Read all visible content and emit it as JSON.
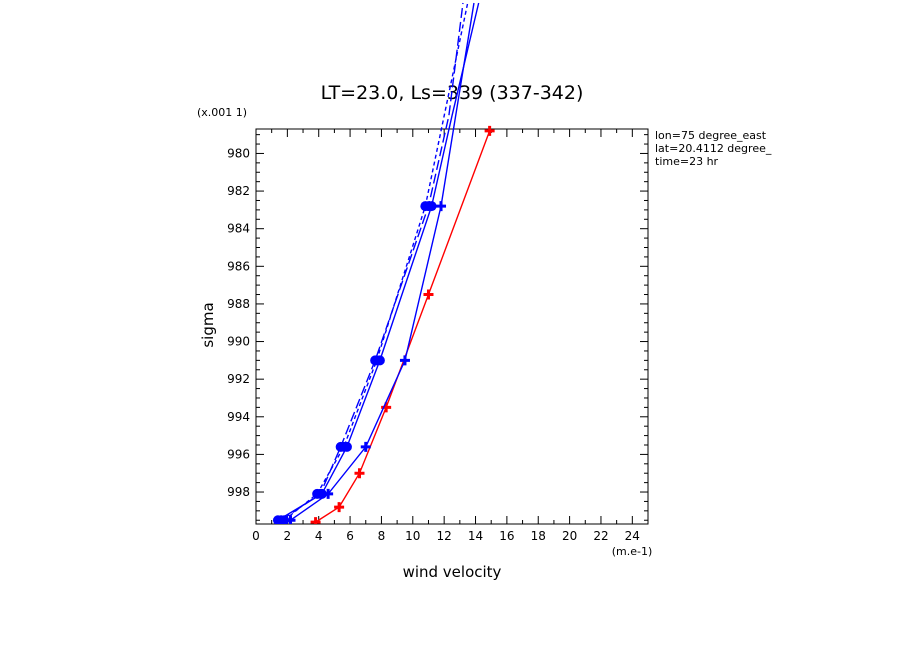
{
  "chart_data": {
    "type": "line",
    "title": "LT=23.0, Ls=339 (337-342)",
    "xlabel": "wind velocity",
    "x_unit": "(m.e-1)",
    "ylabel": "sigma",
    "y_unit": "(x.001 1)",
    "xlim": [
      0,
      25
    ],
    "ylim": [
      978.7,
      999.7
    ],
    "y_inverted": true,
    "x_ticks": [
      0,
      2,
      4,
      6,
      8,
      10,
      12,
      14,
      16,
      18,
      20,
      22,
      24
    ],
    "x_tick_labels": [
      "0",
      "2",
      "4",
      "6",
      "8",
      "10",
      "12",
      "14",
      "16",
      "18",
      "20",
      "22",
      "24"
    ],
    "y_ticks": [
      980,
      982,
      984,
      986,
      988,
      990,
      992,
      994,
      996,
      998
    ],
    "y_tick_labels": [
      "980",
      "982",
      "984",
      "986",
      "988",
      "990",
      "992",
      "994",
      "996",
      "998"
    ],
    "grid": false,
    "annotations": [
      "lon=75 degree_east",
      "lat=20.4112 degree_",
      "time=23 hr"
    ],
    "series": [
      {
        "color": "#ff0000",
        "dash": "solid",
        "marker": "plus",
        "points": [
          [
            3.8,
            999.6
          ],
          [
            5.3,
            998.8
          ],
          [
            6.6,
            997.0
          ],
          [
            8.3,
            993.5
          ],
          [
            11.0,
            987.5
          ],
          [
            14.9,
            978.8
          ]
        ]
      },
      {
        "color": "#0000ff",
        "dash": "solid",
        "marker": "plus",
        "points": [
          [
            2.2,
            999.5
          ],
          [
            4.6,
            998.1
          ],
          [
            7.0,
            995.6
          ],
          [
            9.5,
            991.0
          ],
          [
            11.8,
            982.8
          ],
          [
            13.9,
            972.0
          ]
        ]
      },
      {
        "color": "#0000ff",
        "dash": "solid",
        "marker": "circle",
        "points": [
          [
            1.4,
            999.5
          ],
          [
            4.2,
            998.1
          ],
          [
            5.8,
            995.6
          ],
          [
            7.9,
            991.0
          ],
          [
            11.2,
            982.8
          ],
          [
            12.5,
            978.0
          ],
          [
            14.2,
            972.0
          ]
        ]
      },
      {
        "color": "#0000ff",
        "dash": "short",
        "marker": "circle",
        "points": [
          [
            1.8,
            999.5
          ],
          [
            3.9,
            998.1
          ],
          [
            5.6,
            995.6
          ],
          [
            7.7,
            991.0
          ],
          [
            10.8,
            982.8
          ],
          [
            12.0,
            978.0
          ],
          [
            13.5,
            972.0
          ]
        ]
      },
      {
        "color": "#0000ff",
        "dash": "long",
        "marker": "circle",
        "points": [
          [
            1.6,
            999.5
          ],
          [
            4.1,
            998.1
          ],
          [
            5.4,
            995.6
          ],
          [
            7.6,
            991.0
          ],
          [
            11.0,
            982.8
          ],
          [
            12.3,
            978.0
          ],
          [
            13.2,
            972.0
          ]
        ]
      }
    ]
  }
}
